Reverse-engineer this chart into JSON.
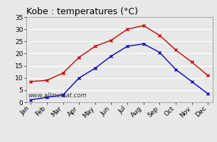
{
  "title": "Kobe : temperatures (°C)",
  "months": [
    "Jan",
    "Feb",
    "Mar",
    "Apr",
    "May",
    "Jun",
    "Jul",
    "Aug",
    "Sep",
    "Oct",
    "Nov",
    "Dec"
  ],
  "max_temps": [
    8.5,
    9.0,
    12.0,
    18.5,
    23.0,
    25.5,
    30.0,
    31.5,
    27.5,
    21.5,
    16.5,
    11.0
  ],
  "min_temps": [
    1.0,
    2.0,
    3.0,
    10.0,
    14.0,
    19.0,
    23.0,
    24.0,
    20.5,
    13.5,
    8.5,
    3.5
  ],
  "max_color": "#cc0000",
  "min_color": "#0000cc",
  "ylim": [
    0,
    35
  ],
  "yticks": [
    0,
    5,
    10,
    15,
    20,
    25,
    30,
    35
  ],
  "bg_color": "#e8e8e8",
  "plot_bg_color": "#e8e8e8",
  "grid_color": "#ffffff",
  "watermark": "www.allmetsat.com",
  "title_fontsize": 9,
  "tick_fontsize": 6.5,
  "watermark_fontsize": 6
}
